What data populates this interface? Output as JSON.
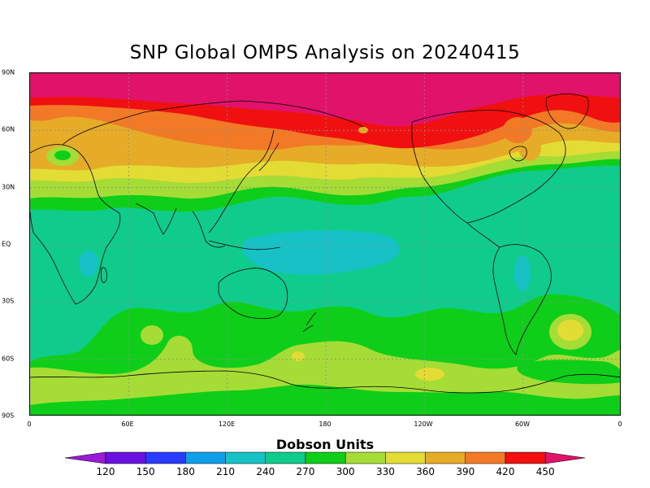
{
  "title": "SNP Global OMPS Analysis on 20240415",
  "map": {
    "lat_labels": [
      {
        "lat": 90,
        "text": "90N"
      },
      {
        "lat": 60,
        "text": "60N"
      },
      {
        "lat": 30,
        "text": "30N"
      },
      {
        "lat": 0,
        "text": "EQ"
      },
      {
        "lat": -30,
        "text": "30S"
      },
      {
        "lat": -60,
        "text": "60S"
      },
      {
        "lat": -90,
        "text": "90S"
      }
    ],
    "lon_labels": [
      {
        "lon": 0,
        "text": "0"
      },
      {
        "lon": 60,
        "text": "60E"
      },
      {
        "lon": 120,
        "text": "120E"
      },
      {
        "lon": 180,
        "text": "180"
      },
      {
        "lon": 240,
        "text": "120W"
      },
      {
        "lon": 300,
        "text": "60W"
      },
      {
        "lon": 360,
        "text": "0"
      }
    ],
    "gridlines": "dotted every 30 degrees"
  },
  "colorbar": {
    "title": "Dobson Units",
    "ticks": [
      "120",
      "150",
      "180",
      "210",
      "240",
      "270",
      "300",
      "330",
      "360",
      "390",
      "420",
      "450"
    ],
    "colors": [
      "#9a1bd6",
      "#6a10e0",
      "#2a3cff",
      "#0f9fe8",
      "#16c2c6",
      "#10cc8c",
      "#0fce1a",
      "#a6dc36",
      "#e2dc34",
      "#e6ac28",
      "#f27a26",
      "#f01010",
      "#e0126a"
    ]
  }
}
